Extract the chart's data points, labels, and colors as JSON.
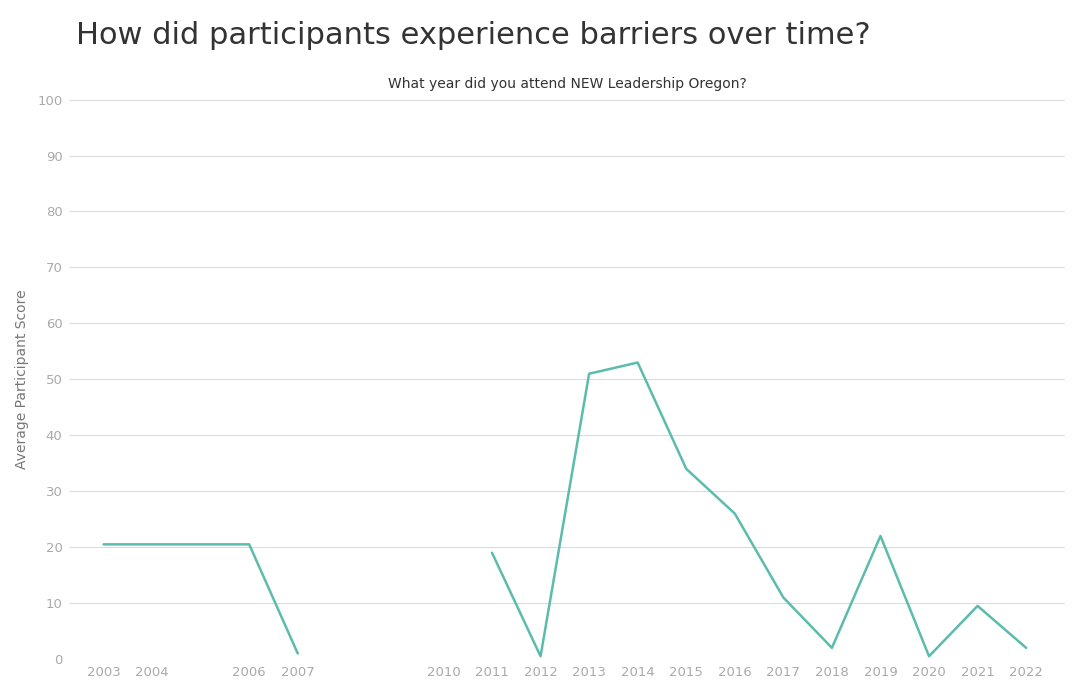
{
  "title": "How did participants experience barriers over time?",
  "xlabel": "What year did you attend NEW Leadership Oregon?",
  "ylabel": "Average Participant Score",
  "segments": [
    {
      "years": [
        2003,
        2004,
        2006,
        2007
      ],
      "values": [
        20.5,
        20.5,
        20.5,
        1.0
      ]
    },
    {
      "years": [
        2011,
        2012,
        2013,
        2014,
        2015,
        2016,
        2017,
        2018,
        2019,
        2020,
        2021,
        2022
      ],
      "values": [
        19.0,
        0.5,
        51.0,
        53.0,
        34.0,
        26.0,
        11.0,
        2.0,
        22.0,
        0.5,
        9.5,
        2.0
      ]
    }
  ],
  "line_color": "#5bbcad",
  "line_width": 1.8,
  "background_color": "#ffffff",
  "grid_color": "#d8d8d8",
  "ylim": [
    0,
    100
  ],
  "yticks": [
    0,
    10,
    20,
    30,
    40,
    50,
    60,
    70,
    80,
    90,
    100
  ],
  "xticks": [
    2003,
    2004,
    2006,
    2007,
    2010,
    2011,
    2012,
    2013,
    2014,
    2015,
    2016,
    2017,
    2018,
    2019,
    2020,
    2021,
    2022
  ],
  "title_fontsize": 22,
  "xlabel_fontsize": 10,
  "ylabel_fontsize": 10,
  "tick_fontsize": 9.5,
  "title_color": "#333333",
  "xlabel_color": "#333333",
  "label_color": "#777777",
  "tick_color": "#aaaaaa"
}
